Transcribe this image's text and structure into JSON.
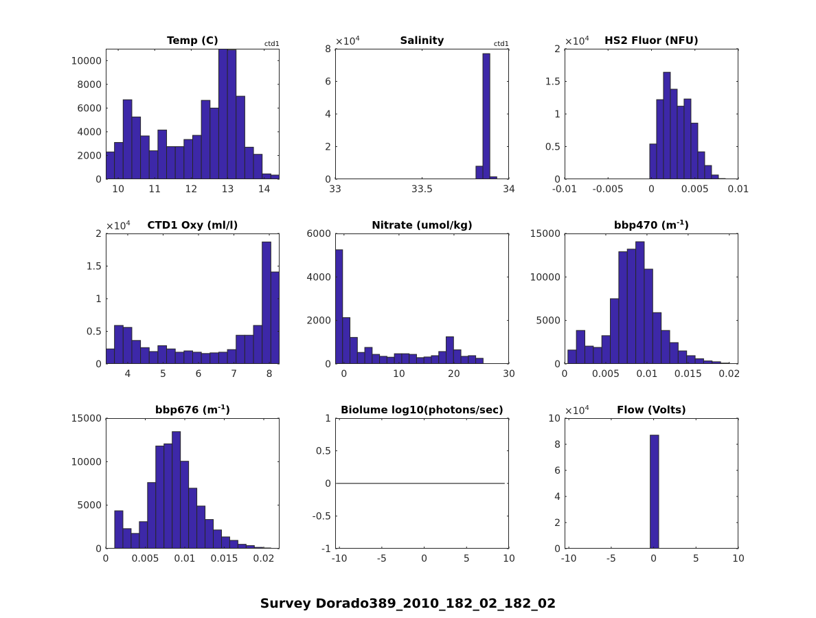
{
  "figure": {
    "suptitle": "Survey Dorado389_2010_182_02_182_02",
    "bar_color": "#3d28a8",
    "edge_color": "#262626",
    "text_color": "#262626"
  },
  "chart_data": [
    {
      "type": "bar",
      "title": "Temp (C)",
      "corner_label": "ctd1",
      "exponent": "",
      "xlim": [
        9.66,
        14.42
      ],
      "ylim": [
        0,
        11000
      ],
      "xticks": [
        10,
        11,
        12,
        13,
        14
      ],
      "xtick_labels": [
        "10",
        "11",
        "12",
        "13",
        "14"
      ],
      "yticks": [
        0,
        2000,
        4000,
        6000,
        8000,
        10000
      ],
      "ytick_labels": [
        "0",
        "2000",
        "4000",
        "6000",
        "8000",
        "10000"
      ],
      "bin_start": 9.66,
      "bin_width": 0.238,
      "values": [
        2300,
        3100,
        6700,
        5250,
        3650,
        2400,
        4150,
        2750,
        2750,
        3350,
        3700,
        6650,
        6000,
        11000,
        10900,
        7000,
        2700,
        2100,
        450,
        350
      ]
    },
    {
      "type": "bar",
      "title": "Salinity",
      "corner_label": "ctd1",
      "exponent": "4",
      "xlim": [
        33,
        34
      ],
      "ylim": [
        0,
        8
      ],
      "xticks": [
        33,
        33.5,
        34
      ],
      "xtick_labels": [
        "33",
        "33.5",
        "34"
      ],
      "yticks": [
        0,
        2,
        4,
        6,
        8
      ],
      "ytick_labels": [
        "0",
        "2",
        "4",
        "6",
        "8"
      ],
      "bin_start": 33.81,
      "bin_width": 0.04,
      "values": [
        0.8,
        7.7,
        0.15
      ]
    },
    {
      "type": "bar",
      "title": "HS2 Fluor (NFU)",
      "corner_label": "",
      "exponent": "4",
      "xlim": [
        -0.01,
        0.01
      ],
      "ylim": [
        0,
        2
      ],
      "xticks": [
        -0.01,
        -0.005,
        0,
        0.005,
        0.01
      ],
      "xtick_labels": [
        "-0.01",
        "-0.005",
        "0",
        "0.005",
        "0.01"
      ],
      "yticks": [
        0,
        0.5,
        1,
        1.5,
        2
      ],
      "ytick_labels": [
        "0",
        "0.5",
        "1",
        "1.5",
        "2"
      ],
      "bin_start": -0.0002,
      "bin_width": 0.00079,
      "values": [
        0.54,
        1.22,
        1.64,
        1.38,
        1.12,
        1.23,
        0.86,
        0.42,
        0.21,
        0.065,
        0.01
      ]
    },
    {
      "type": "bar",
      "title": "CTD1 Oxy (ml/l)",
      "corner_label": "",
      "exponent": "4",
      "xlim": [
        3.38,
        8.29
      ],
      "ylim": [
        0,
        2
      ],
      "xticks": [
        4,
        5,
        6,
        7,
        8
      ],
      "xtick_labels": [
        "4",
        "5",
        "6",
        "7",
        "8"
      ],
      "yticks": [
        0,
        0.5,
        1,
        1.5,
        2
      ],
      "ytick_labels": [
        "0",
        "0.5",
        "1",
        "1.5",
        "2"
      ],
      "bin_start": 3.38,
      "bin_width": 0.2455,
      "values": [
        0.23,
        0.59,
        0.56,
        0.36,
        0.25,
        0.19,
        0.28,
        0.23,
        0.18,
        0.2,
        0.18,
        0.16,
        0.17,
        0.18,
        0.22,
        0.44,
        0.44,
        0.59,
        1.87,
        1.41
      ]
    },
    {
      "type": "bar",
      "title": "Nitrate (umol/kg)",
      "corner_label": "",
      "exponent": "",
      "xlim": [
        -1.6,
        30
      ],
      "ylim": [
        0,
        6000
      ],
      "xticks": [
        0,
        10,
        20,
        30
      ],
      "xtick_labels": [
        "0",
        "10",
        "20",
        "30"
      ],
      "yticks": [
        0,
        2000,
        4000,
        6000
      ],
      "ytick_labels": [
        "0",
        "2000",
        "4000",
        "6000"
      ],
      "bin_start": -1.6,
      "bin_width": 1.345,
      "values": [
        5250,
        2130,
        1220,
        530,
        760,
        440,
        350,
        310,
        470,
        470,
        440,
        290,
        320,
        380,
        570,
        1250,
        650,
        350,
        380,
        260
      ]
    },
    {
      "type": "bar",
      "title": "bbp470 (m",
      "title_sup": "-1",
      "title_end": ")",
      "corner_label": "",
      "exponent": "",
      "xlim": [
        0,
        0.0211
      ],
      "ylim": [
        0,
        15000
      ],
      "xticks": [
        0,
        0.005,
        0.01,
        0.015,
        0.02
      ],
      "xtick_labels": [
        "0",
        "0.005",
        "0.01",
        "0.015",
        "0.02"
      ],
      "yticks": [
        0,
        5000,
        10000,
        15000
      ],
      "ytick_labels": [
        "0",
        "5000",
        "10000",
        "15000"
      ],
      "bin_start": 0.0004,
      "bin_width": 0.00103,
      "values": [
        1600,
        3850,
        2050,
        1900,
        3250,
        7500,
        12900,
        13200,
        14050,
        10900,
        5900,
        3850,
        2450,
        1500,
        950,
        600,
        350,
        250,
        100
      ]
    },
    {
      "type": "bar",
      "title": "bbp676 (m",
      "title_sup": "-1",
      "title_end": ")",
      "corner_label": "",
      "exponent": "",
      "xlim": [
        0,
        0.022
      ],
      "ylim": [
        0,
        15000
      ],
      "xticks": [
        0,
        0.005,
        0.01,
        0.015,
        0.02
      ],
      "xtick_labels": [
        "0",
        "0.005",
        "0.01",
        "0.015",
        "0.02"
      ],
      "yticks": [
        0,
        5000,
        10000,
        15000
      ],
      "ytick_labels": [
        "0",
        "5000",
        "10000",
        "15000"
      ],
      "bin_start": 0.00113,
      "bin_width": 0.00104,
      "values": [
        4350,
        2300,
        1750,
        3100,
        7600,
        11800,
        12050,
        13450,
        10050,
        6950,
        4900,
        3350,
        2150,
        1350,
        950,
        500,
        350,
        150,
        80
      ]
    },
    {
      "type": "line",
      "title": "Biolume log10(photons/sec)",
      "corner_label": "",
      "exponent": "",
      "xlim": [
        -10.5,
        10
      ],
      "ylim": [
        -1,
        1
      ],
      "xticks": [
        -10,
        -5,
        0,
        5,
        10
      ],
      "xtick_labels": [
        "-10",
        "-5",
        "0",
        "5",
        "10"
      ],
      "yticks": [
        -1,
        -0.5,
        0,
        0.5,
        1
      ],
      "ytick_labels": [
        "-1",
        "-0.5",
        "0",
        "0.5",
        "1"
      ],
      "x": [
        -10.5,
        9.5
      ],
      "y": [
        0,
        0
      ]
    },
    {
      "type": "bar",
      "title": "Flow (Volts)",
      "corner_label": "",
      "exponent": "4",
      "xlim": [
        -10.5,
        10
      ],
      "ylim": [
        0,
        10
      ],
      "xticks": [
        -10,
        -5,
        0,
        5,
        10
      ],
      "xtick_labels": [
        "-10",
        "-5",
        "0",
        "5",
        "10"
      ],
      "yticks": [
        0,
        2,
        4,
        6,
        8,
        10
      ],
      "ytick_labels": [
        "0",
        "2",
        "4",
        "6",
        "8",
        "10"
      ],
      "bin_start": -0.4,
      "bin_width": 1.0,
      "values": [
        8.7
      ]
    }
  ]
}
